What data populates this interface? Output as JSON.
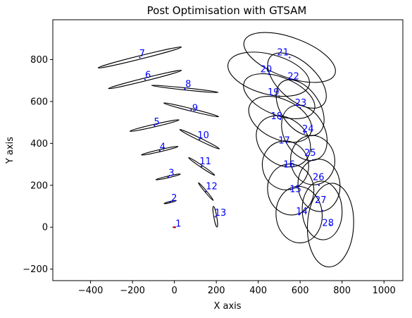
{
  "chart_data": {
    "type": "scatter",
    "title": "Post Optimisation with GTSAM",
    "xlabel": "X axis",
    "ylabel": "Y axis",
    "xlim": [
      -580,
      1090
    ],
    "ylim": [
      -255,
      990
    ],
    "xticks": [
      -400,
      -200,
      0,
      200,
      400,
      600,
      800,
      1000
    ],
    "yticks": [
      -200,
      0,
      200,
      400,
      600,
      800
    ],
    "grid": false,
    "label_color": "#0000ff",
    "ellipse_color": "#000000",
    "first_node_color": "#ff0000",
    "nodes": [
      {
        "id": "1",
        "x": 0,
        "y": 0,
        "rx": 6,
        "ry": 1.5,
        "angle": 0
      },
      {
        "id": "2",
        "x": -20,
        "y": 120,
        "rx": 30,
        "ry": 3,
        "angle": 14
      },
      {
        "id": "3",
        "x": -30,
        "y": 240,
        "rx": 60,
        "ry": 4,
        "angle": 13
      },
      {
        "id": "4",
        "x": -70,
        "y": 365,
        "rx": 90,
        "ry": 5,
        "angle": 13
      },
      {
        "id": "5",
        "x": -95,
        "y": 485,
        "rx": 120,
        "ry": 6,
        "angle": 13
      },
      {
        "id": "6",
        "x": -140,
        "y": 705,
        "rx": 180,
        "ry": 7,
        "angle": 14
      },
      {
        "id": "7",
        "x": -165,
        "y": 810,
        "rx": 205,
        "ry": 8,
        "angle": 14
      },
      {
        "id": "8",
        "x": 50,
        "y": 660,
        "rx": 160,
        "ry": 5,
        "angle": -6
      },
      {
        "id": "9",
        "x": 80,
        "y": 560,
        "rx": 135,
        "ry": 6,
        "angle": -14
      },
      {
        "id": "10",
        "x": 120,
        "y": 420,
        "rx": 105,
        "ry": 6,
        "angle": -26
      },
      {
        "id": "11",
        "x": 130,
        "y": 290,
        "rx": 75,
        "ry": 5,
        "angle": -34
      },
      {
        "id": "12",
        "x": 150,
        "y": 170,
        "rx": 55,
        "ry": 4,
        "angle": -50
      },
      {
        "id": "13",
        "x": 195,
        "y": 50,
        "rx": 50,
        "ry": 7,
        "angle": -80
      },
      {
        "id": "14",
        "x": 595,
        "y": 60,
        "rx": 110,
        "ry": 135,
        "angle": 5
      },
      {
        "id": "15",
        "x": 555,
        "y": 180,
        "rx": 110,
        "ry": 122,
        "angle": 10
      },
      {
        "id": "16",
        "x": 530,
        "y": 295,
        "rx": 110,
        "ry": 117,
        "angle": 15
      },
      {
        "id": "17",
        "x": 520,
        "y": 410,
        "rx": 140,
        "ry": 110,
        "angle": -38
      },
      {
        "id": "18",
        "x": 505,
        "y": 515,
        "rx": 160,
        "ry": 95,
        "angle": -25
      },
      {
        "id": "19",
        "x": 500,
        "y": 625,
        "rx": 180,
        "ry": 90,
        "angle": -22
      },
      {
        "id": "20",
        "x": 450,
        "y": 730,
        "rx": 200,
        "ry": 95,
        "angle": -15
      },
      {
        "id": "21",
        "x": 550,
        "y": 810,
        "rx": 230,
        "ry": 95,
        "angle": -20
      },
      {
        "id": "22",
        "x": 585,
        "y": 700,
        "rx": 170,
        "ry": 90,
        "angle": -42
      },
      {
        "id": "23",
        "x": 600,
        "y": 570,
        "rx": 150,
        "ry": 92,
        "angle": -55
      },
      {
        "id": "24",
        "x": 620,
        "y": 450,
        "rx": 140,
        "ry": 98,
        "angle": -62
      },
      {
        "id": "25",
        "x": 660,
        "y": 320,
        "rx": 105,
        "ry": 118,
        "angle": 10
      },
      {
        "id": "26",
        "x": 690,
        "y": 200,
        "rx": 100,
        "ry": 125,
        "angle": 5
      },
      {
        "id": "27",
        "x": 705,
        "y": 80,
        "rx": 95,
        "ry": 140,
        "angle": 3
      },
      {
        "id": "28",
        "x": 745,
        "y": 10,
        "rx": 110,
        "ry": 200,
        "angle": -3
      }
    ],
    "label_positions": [
      {
        "id": "1",
        "x": 5,
        "y": 2
      },
      {
        "id": "2",
        "x": -15,
        "y": 125
      },
      {
        "id": "3",
        "x": -28,
        "y": 245
      },
      {
        "id": "4",
        "x": -70,
        "y": 370
      },
      {
        "id": "5",
        "x": -98,
        "y": 488
      },
      {
        "id": "6",
        "x": -140,
        "y": 712
      },
      {
        "id": "7",
        "x": -168,
        "y": 815
      },
      {
        "id": "8",
        "x": 52,
        "y": 668
      },
      {
        "id": "9",
        "x": 85,
        "y": 555
      },
      {
        "id": "10",
        "x": 110,
        "y": 425
      },
      {
        "id": "11",
        "x": 120,
        "y": 300
      },
      {
        "id": "12",
        "x": 150,
        "y": 180
      },
      {
        "id": "13",
        "x": 192,
        "y": 55
      },
      {
        "id": "14",
        "x": 580,
        "y": 62
      },
      {
        "id": "15",
        "x": 550,
        "y": 168
      },
      {
        "id": "16",
        "x": 520,
        "y": 285
      },
      {
        "id": "17",
        "x": 496,
        "y": 400
      },
      {
        "id": "18",
        "x": 460,
        "y": 515
      },
      {
        "id": "19",
        "x": 445,
        "y": 630
      },
      {
        "id": "20",
        "x": 410,
        "y": 740
      },
      {
        "id": "21",
        "x": 490,
        "y": 820
      },
      {
        "id": "22",
        "x": 540,
        "y": 705
      },
      {
        "id": "23",
        "x": 575,
        "y": 580
      },
      {
        "id": "24",
        "x": 610,
        "y": 455
      },
      {
        "id": "25",
        "x": 620,
        "y": 340
      },
      {
        "id": "26",
        "x": 660,
        "y": 225
      },
      {
        "id": "27",
        "x": 670,
        "y": 115
      },
      {
        "id": "28",
        "x": 705,
        "y": 5
      }
    ]
  }
}
